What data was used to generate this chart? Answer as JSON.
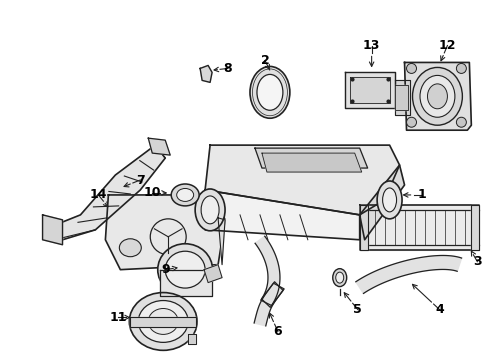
{
  "bg_color": "#ffffff",
  "lc": "#222222",
  "fig_w": 4.89,
  "fig_h": 3.6,
  "dpi": 100
}
